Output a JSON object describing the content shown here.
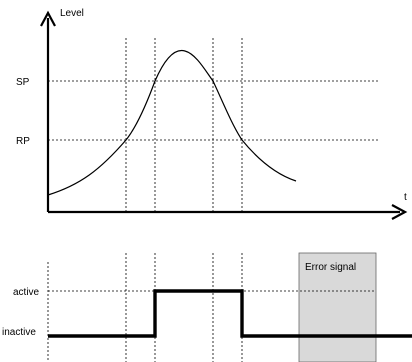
{
  "upper_chart": {
    "y_axis_label": "Level",
    "x_axis_label": "t",
    "sp_label": "SP",
    "rp_label": "RP"
  },
  "lower_chart": {
    "active_label": "active",
    "inactive_label": "inactive",
    "error_label": "Error signal"
  },
  "colors": {
    "line": "#000000",
    "grid": "#000000",
    "error_fill": "#d9d9d9",
    "error_stroke": "#666666"
  }
}
